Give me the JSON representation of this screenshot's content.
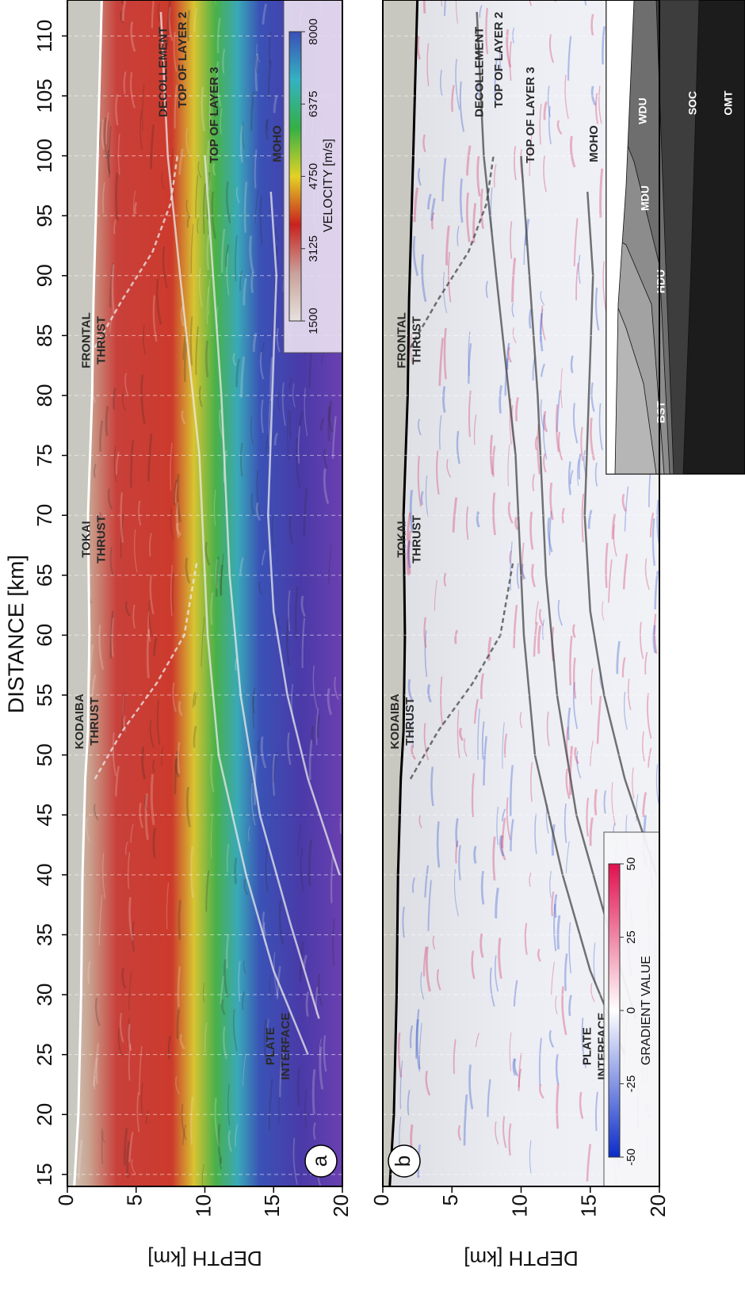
{
  "chart_data": [
    {
      "type": "heatmap",
      "panel_label": "a",
      "xlabel": "DISTANCE [km]",
      "ylabel": "DEPTH [km]",
      "xlim": [
        14,
        113
      ],
      "xticks": [
        15,
        20,
        25,
        30,
        35,
        40,
        45,
        50,
        55,
        60,
        65,
        70,
        75,
        80,
        85,
        90,
        95,
        100,
        105,
        110
      ],
      "ylim": [
        0,
        20
      ],
      "invert_y": true,
      "yticks": [
        0,
        5,
        10,
        15,
        20
      ],
      "colorbar": {
        "label": "VELOCITY [m/s]",
        "ticks": [
          1500,
          3125,
          4750,
          6375,
          8000
        ],
        "colors": [
          "#e6e2de",
          "#c9a099",
          "#c8221e",
          "#e2d224",
          "#34b046",
          "#34b2c2",
          "#3a4fb8"
        ]
      },
      "annotations": [
        [
          "FRONTAL",
          "THRUST"
        ],
        [
          "TOKAI",
          "THRUST"
        ],
        [
          "KODAIBA",
          "THRUST"
        ],
        [
          "DECOLLEMENT"
        ],
        [
          "TOP OF LAYER 2"
        ],
        [
          "TOP OF LAYER 3"
        ],
        [
          "MOHO"
        ],
        [
          "PLATE",
          "INTERFACE"
        ]
      ]
    },
    {
      "type": "heatmap",
      "panel_label": "b",
      "ylabel": "DEPTH [km]",
      "xlim": [
        14,
        113
      ],
      "ylim": [
        0,
        20
      ],
      "invert_y": true,
      "yticks": [
        0,
        5,
        10,
        15,
        20
      ],
      "colorbar": {
        "label": "GRADIENT VALUE",
        "ticks": [
          -50,
          -25,
          0,
          25,
          50
        ],
        "colors": [
          "#0a2cc8",
          "#ffffff",
          "#e0104e"
        ]
      },
      "annotations": [
        [
          "FRONTAL",
          "THRUST"
        ],
        [
          "TOKAI",
          "THRUST"
        ],
        [
          "KODAIBA",
          "THRUST"
        ],
        [
          "DECOLLEMENT"
        ],
        [
          "TOP OF LAYER 2"
        ],
        [
          "TOP OF LAYER 3"
        ],
        [
          "MOHO"
        ],
        [
          "PLATE",
          "INTERFACE"
        ]
      ],
      "inset_labels": [
        "BST",
        "HDU",
        "MDU",
        "WDU",
        "SOC",
        "OMT"
      ]
    }
  ]
}
